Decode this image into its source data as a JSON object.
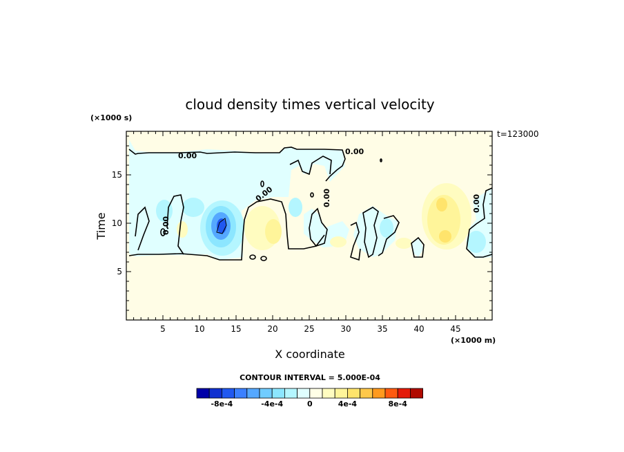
{
  "chart_data": {
    "type": "heatmap",
    "title": "cloud density times vertical velocity",
    "xlabel": "X coordinate",
    "ylabel": "Time",
    "x_unit": "(×1000 m)",
    "y_unit": "(×1000 s)",
    "time_label": "t=123000",
    "xlim": [
      0,
      50
    ],
    "ylim": [
      0,
      19.5
    ],
    "xticks": [
      "5",
      "10",
      "15",
      "20",
      "25",
      "30",
      "35",
      "40",
      "45"
    ],
    "yticks": [
      "5",
      "10",
      "15"
    ],
    "contour_interval_label": "CONTOUR INTERVAL = 5.000E-04",
    "contour_label": "0.00",
    "colorbar_labels": [
      "-8e-4",
      "-4e-4",
      "0",
      "4e-4",
      "8e-4"
    ],
    "colorbar_colors": [
      "#0000a8",
      "#1030d0",
      "#2058f0",
      "#3b80ff",
      "#55a8ff",
      "#70ccff",
      "#8ce6ff",
      "#b4f6ff",
      "#e0ffff",
      "#ffffe6",
      "#fffcc0",
      "#fff59a",
      "#ffe46c",
      "#ffc84a",
      "#ff9a1e",
      "#ff5a10",
      "#e41a08",
      "#b00a00"
    ],
    "background_color": "#fffde6",
    "features": [
      {
        "kind": "negative_region",
        "x_range": [
          0,
          22
        ],
        "y_range": [
          6.5,
          18
        ],
        "value": "~ -1e-4"
      },
      {
        "kind": "negative_region",
        "x_range": [
          22,
          35
        ],
        "y_range": [
          14,
          18
        ],
        "value": "~ -1e-4"
      },
      {
        "kind": "negative_core",
        "x": 13,
        "y": 10,
        "value": "~ -8e-4"
      },
      {
        "kind": "positive_region",
        "x": 43,
        "y": 10,
        "value": "~ 3e-4"
      },
      {
        "kind": "negative_region",
        "x_range": [
          46,
          50
        ],
        "y_range": [
          7,
          14
        ],
        "value": "~ -2e-4"
      }
    ]
  }
}
